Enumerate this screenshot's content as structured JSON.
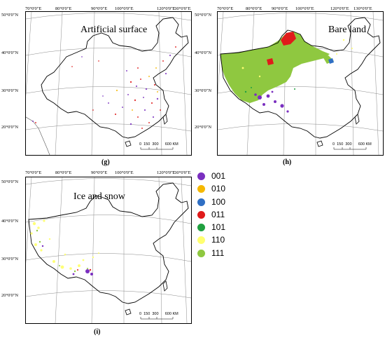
{
  "figure": {
    "lon_labels_top_left": [
      "70°0'0\"E",
      "80°0'0\"E",
      "90°0'0\"E",
      "100°0'0\"E",
      "120°0'0\"E",
      "130°0'0\"E"
    ],
    "lat_labels_left": [
      "50°0'0\"N",
      "40°0'0\"N",
      "30°0'0\"N",
      "20°0'0\"N"
    ],
    "scale_ticks": [
      "0",
      "150",
      "300",
      "600 KM"
    ]
  },
  "panels": [
    {
      "id": "g",
      "title": "Artificial surface",
      "label": "(g)",
      "dominant_class": "mixed scatter (purple/red)"
    },
    {
      "id": "h",
      "title": "Bare land",
      "label": "(h)",
      "dominant_class": "111"
    },
    {
      "id": "i",
      "title": "Ice and snow",
      "label": "(i)",
      "dominant_class": "110"
    }
  ],
  "legend": {
    "items": [
      {
        "code": "001",
        "color": "#7a2fc0"
      },
      {
        "code": "010",
        "color": "#f5b800"
      },
      {
        "code": "100",
        "color": "#2f6fc4"
      },
      {
        "code": "011",
        "color": "#e01b1b"
      },
      {
        "code": "101",
        "color": "#20a040"
      },
      {
        "code": "110",
        "color": "#ffff70"
      },
      {
        "code": "111",
        "color": "#8fc840"
      }
    ]
  }
}
